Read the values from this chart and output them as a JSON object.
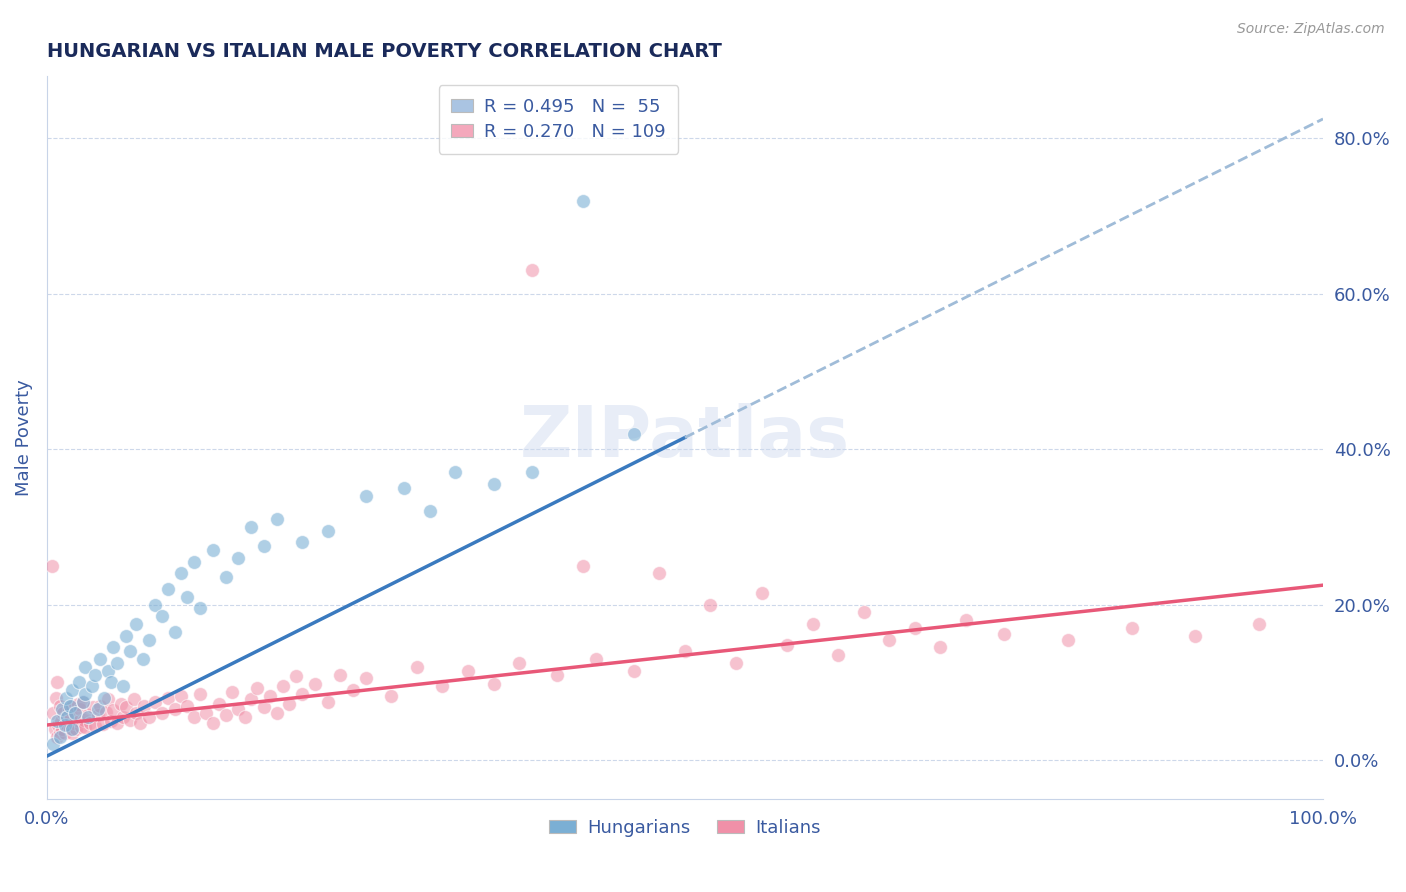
{
  "title": "HUNGARIAN VS ITALIAN MALE POVERTY CORRELATION CHART",
  "source": "Source: ZipAtlas.com",
  "ylabel": "Male Poverty",
  "xlim": [
    0.0,
    1.0
  ],
  "ylim": [
    -0.05,
    0.88
  ],
  "right_yticks": [
    0.0,
    0.2,
    0.4,
    0.6,
    0.8
  ],
  "right_yticklabels": [
    "0.0%",
    "20.0%",
    "40.0%",
    "60.0%",
    "80.0%"
  ],
  "xticklabels": [
    "0.0%",
    "100.0%"
  ],
  "xtick_positions": [
    0.0,
    1.0
  ],
  "legend_entries": [
    {
      "label_r": "R = 0.495",
      "label_n": "N =  55",
      "color": "#aac4e2"
    },
    {
      "label_r": "R = 0.270",
      "label_n": "N = 109",
      "color": "#f4a8bc"
    }
  ],
  "watermark": "ZIPatlas",
  "hungarian_color": "#7bafd4",
  "italian_color": "#f090a8",
  "hungarian_line_color": "#3a7abf",
  "italian_line_color": "#e85878",
  "trend_dashed_color": "#a0bcd8",
  "grid_color": "#c8d4e8",
  "title_color": "#1a2a5a",
  "axis_color": "#3a5aa0",
  "background_color": "#ffffff",
  "hun_trend_x0": 0.0,
  "hun_trend_y0": 0.005,
  "hun_trend_x1": 0.5,
  "hun_trend_y1": 0.415,
  "hun_trend_ext_x1": 1.0,
  "hun_trend_ext_y1": 0.825,
  "ita_trend_x0": 0.0,
  "ita_trend_y0": 0.045,
  "ita_trend_x1": 1.0,
  "ita_trend_y1": 0.225,
  "hungarian_scatter_x": [
    0.005,
    0.008,
    0.01,
    0.012,
    0.014,
    0.015,
    0.016,
    0.018,
    0.02,
    0.02,
    0.022,
    0.025,
    0.028,
    0.03,
    0.03,
    0.032,
    0.035,
    0.038,
    0.04,
    0.042,
    0.045,
    0.048,
    0.05,
    0.052,
    0.055,
    0.06,
    0.062,
    0.065,
    0.07,
    0.075,
    0.08,
    0.085,
    0.09,
    0.095,
    0.1,
    0.105,
    0.11,
    0.115,
    0.12,
    0.13,
    0.14,
    0.15,
    0.16,
    0.17,
    0.18,
    0.2,
    0.22,
    0.25,
    0.28,
    0.3,
    0.32,
    0.35,
    0.38,
    0.42,
    0.46
  ],
  "hungarian_scatter_y": [
    0.02,
    0.05,
    0.03,
    0.065,
    0.045,
    0.08,
    0.055,
    0.07,
    0.04,
    0.09,
    0.06,
    0.1,
    0.075,
    0.085,
    0.12,
    0.055,
    0.095,
    0.11,
    0.065,
    0.13,
    0.08,
    0.115,
    0.1,
    0.145,
    0.125,
    0.095,
    0.16,
    0.14,
    0.175,
    0.13,
    0.155,
    0.2,
    0.185,
    0.22,
    0.165,
    0.24,
    0.21,
    0.255,
    0.195,
    0.27,
    0.235,
    0.26,
    0.3,
    0.275,
    0.31,
    0.28,
    0.295,
    0.34,
    0.35,
    0.32,
    0.37,
    0.355,
    0.37,
    0.72,
    0.42
  ],
  "italian_scatter_x": [
    0.004,
    0.005,
    0.006,
    0.007,
    0.008,
    0.008,
    0.009,
    0.01,
    0.01,
    0.011,
    0.012,
    0.013,
    0.014,
    0.015,
    0.016,
    0.017,
    0.018,
    0.019,
    0.02,
    0.02,
    0.021,
    0.022,
    0.023,
    0.024,
    0.025,
    0.026,
    0.027,
    0.028,
    0.029,
    0.03,
    0.032,
    0.034,
    0.036,
    0.038,
    0.04,
    0.042,
    0.044,
    0.046,
    0.048,
    0.05,
    0.052,
    0.055,
    0.058,
    0.06,
    0.062,
    0.065,
    0.068,
    0.07,
    0.073,
    0.076,
    0.08,
    0.085,
    0.09,
    0.095,
    0.1,
    0.105,
    0.11,
    0.115,
    0.12,
    0.125,
    0.13,
    0.135,
    0.14,
    0.145,
    0.15,
    0.155,
    0.16,
    0.165,
    0.17,
    0.175,
    0.18,
    0.185,
    0.19,
    0.195,
    0.2,
    0.21,
    0.22,
    0.23,
    0.24,
    0.25,
    0.27,
    0.29,
    0.31,
    0.33,
    0.35,
    0.37,
    0.4,
    0.43,
    0.46,
    0.5,
    0.54,
    0.58,
    0.62,
    0.66,
    0.7,
    0.75,
    0.8,
    0.85,
    0.9,
    0.95,
    0.38,
    0.42,
    0.48,
    0.52,
    0.56,
    0.6,
    0.64,
    0.68,
    0.72
  ],
  "italian_scatter_y": [
    0.25,
    0.06,
    0.04,
    0.08,
    0.03,
    0.1,
    0.045,
    0.035,
    0.07,
    0.05,
    0.04,
    0.06,
    0.035,
    0.055,
    0.045,
    0.065,
    0.04,
    0.055,
    0.035,
    0.07,
    0.048,
    0.062,
    0.04,
    0.072,
    0.05,
    0.065,
    0.042,
    0.075,
    0.052,
    0.042,
    0.058,
    0.048,
    0.068,
    0.044,
    0.058,
    0.07,
    0.046,
    0.062,
    0.078,
    0.05,
    0.064,
    0.048,
    0.072,
    0.055,
    0.068,
    0.052,
    0.078,
    0.06,
    0.048,
    0.07,
    0.055,
    0.075,
    0.06,
    0.08,
    0.065,
    0.082,
    0.07,
    0.055,
    0.085,
    0.06,
    0.048,
    0.072,
    0.058,
    0.088,
    0.065,
    0.055,
    0.078,
    0.092,
    0.068,
    0.082,
    0.06,
    0.095,
    0.072,
    0.108,
    0.085,
    0.098,
    0.075,
    0.11,
    0.09,
    0.105,
    0.082,
    0.12,
    0.095,
    0.115,
    0.098,
    0.125,
    0.11,
    0.13,
    0.115,
    0.14,
    0.125,
    0.148,
    0.135,
    0.155,
    0.145,
    0.162,
    0.155,
    0.17,
    0.16,
    0.175,
    0.63,
    0.25,
    0.24,
    0.2,
    0.215,
    0.175,
    0.19,
    0.17,
    0.18
  ]
}
